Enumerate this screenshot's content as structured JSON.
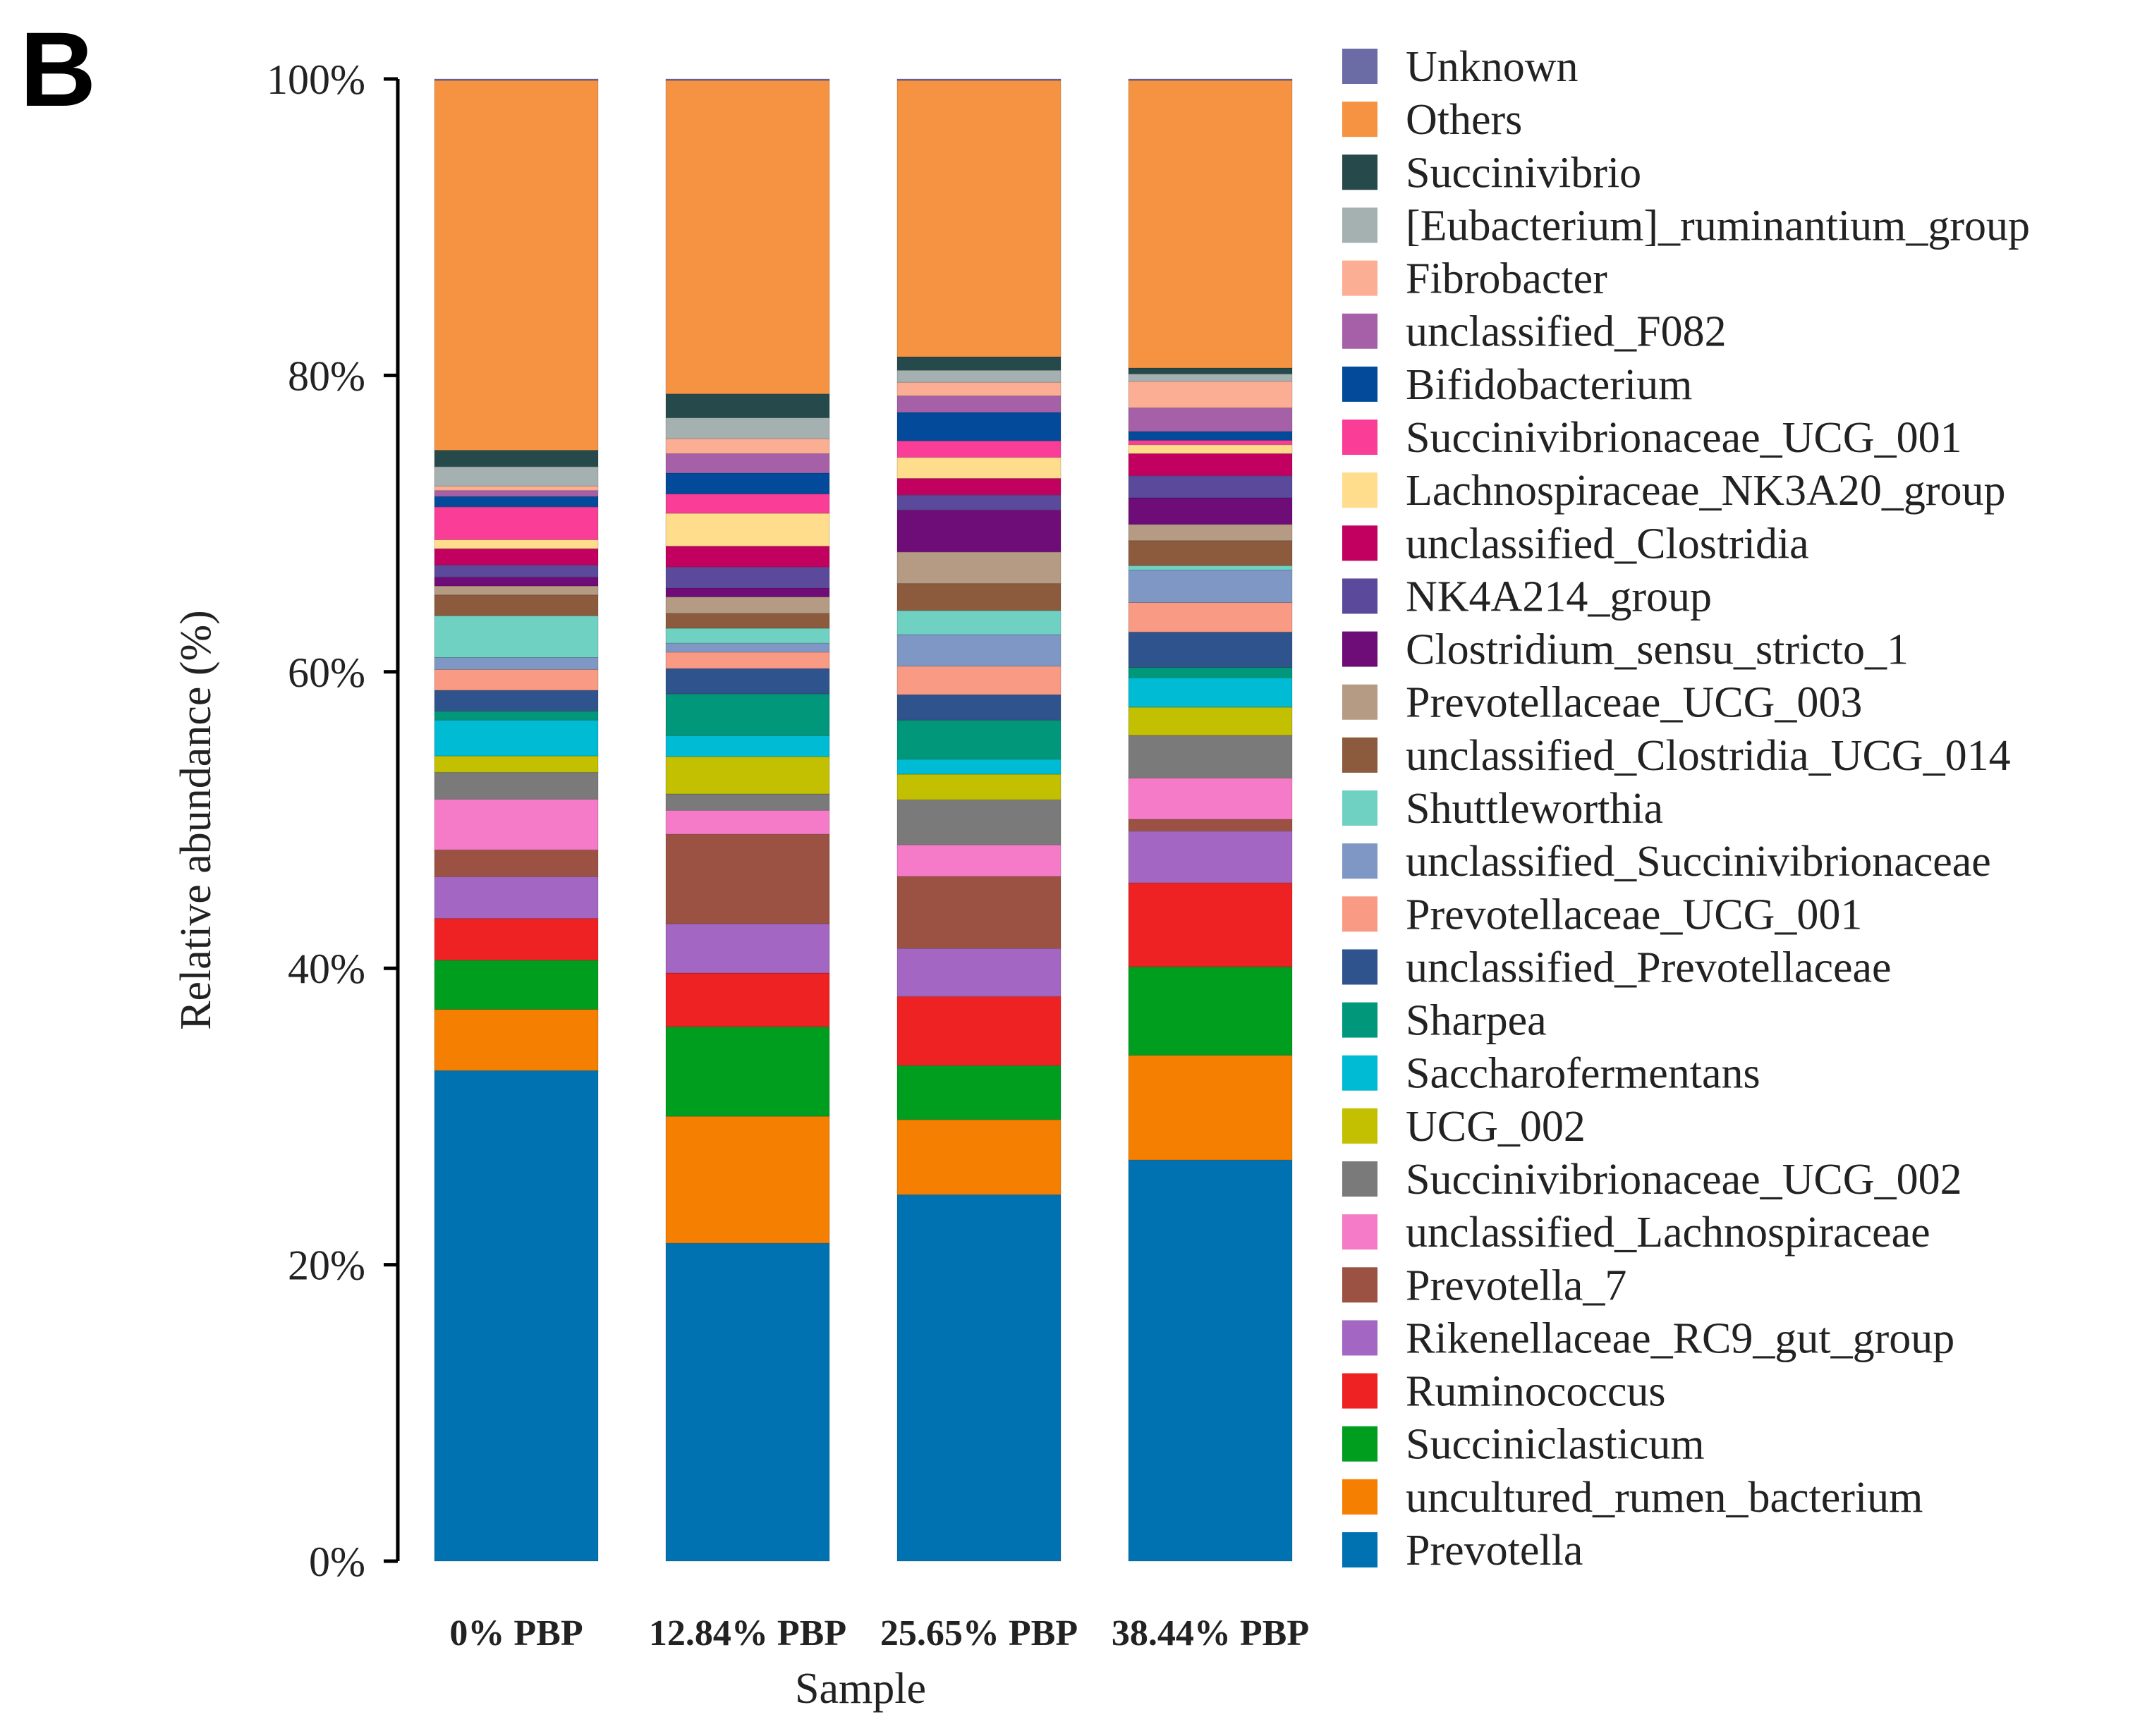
{
  "panel_label": "B",
  "chart_data": {
    "type": "bar",
    "stacked": true,
    "normalized": true,
    "categories": [
      "0% PBP",
      "12.84% PBP",
      "25.65% PBP",
      "38.44% PBP"
    ],
    "xlabel": "Sample",
    "ylabel": "Relative abundance (%)",
    "ylim": [
      0,
      100
    ],
    "yticks": [
      "0%",
      "20%",
      "40%",
      "60%",
      "80%",
      "100%"
    ],
    "ytick_values": [
      0,
      20,
      40,
      60,
      80,
      100
    ],
    "legend_position": "right",
    "series": [
      {
        "name": "Prevotella",
        "color": "#0072B2",
        "values": [
          32.9,
          21.3,
          24.4,
          27.2
        ]
      },
      {
        "name": "uncultured_rumen_bacterium",
        "color": "#F57F00",
        "values": [
          4.1,
          8.5,
          5.0,
          7.1
        ]
      },
      {
        "name": "Succiniclasticum",
        "color": "#009E1F",
        "values": [
          3.3,
          6.0,
          3.6,
          6.0
        ]
      },
      {
        "name": "Ruminococcus",
        "color": "#EE2222",
        "values": [
          2.8,
          3.6,
          4.6,
          5.7
        ]
      },
      {
        "name": "Rikenellaceae_RC9_gut_group",
        "color": "#A366C2",
        "values": [
          2.8,
          3.3,
          3.2,
          3.5
        ]
      },
      {
        "name": "Prevotella_7",
        "color": "#9C5243",
        "values": [
          1.8,
          6.0,
          4.8,
          0.8
        ]
      },
      {
        "name": "unclassified_Lachnospiraceae",
        "color": "#F57BC8",
        "values": [
          3.4,
          1.6,
          2.1,
          2.8
        ]
      },
      {
        "name": "Succinivibrionaceae_UCG_002",
        "color": "#7A7A7A",
        "values": [
          1.8,
          1.1,
          3.0,
          2.9
        ]
      },
      {
        "name": "UCG_002",
        "color": "#C2C000",
        "values": [
          1.1,
          2.5,
          1.7,
          1.9
        ]
      },
      {
        "name": "Saccharofermentans",
        "color": "#00BBD4",
        "values": [
          2.4,
          1.4,
          1.0,
          2.0
        ]
      },
      {
        "name": "Sharpea",
        "color": "#00977B",
        "values": [
          0.6,
          2.8,
          2.6,
          0.7
        ]
      },
      {
        "name": "unclassified_Prevotellaceae",
        "color": "#2F538C",
        "values": [
          1.4,
          1.7,
          1.7,
          2.4
        ]
      },
      {
        "name": "Prevotellaceae_UCG_001",
        "color": "#F89A84",
        "values": [
          1.4,
          1.1,
          1.9,
          2.0
        ]
      },
      {
        "name": "unclassified_Succinivibrionaceae",
        "color": "#7F97C4",
        "values": [
          0.8,
          0.6,
          2.1,
          2.2
        ]
      },
      {
        "name": "Shuttleworthia",
        "color": "#6FD1C2",
        "values": [
          2.8,
          1.0,
          1.6,
          0.3
        ]
      },
      {
        "name": "unclassified_Clostridia_UCG_014",
        "color": "#8C5A3C",
        "values": [
          1.4,
          1.0,
          1.8,
          1.7
        ]
      },
      {
        "name": "Prevotellaceae_UCG_003",
        "color": "#B59A84",
        "values": [
          0.6,
          1.1,
          2.1,
          1.1
        ]
      },
      {
        "name": "Clostridium_sensu_stricto_1",
        "color": "#6E0C78",
        "values": [
          0.6,
          0.6,
          2.8,
          1.8
        ]
      },
      {
        "name": "NK4A214_group",
        "color": "#5B4A9B",
        "values": [
          0.8,
          1.4,
          1.0,
          1.5
        ]
      },
      {
        "name": "unclassified_Clostridia",
        "color": "#C2005F",
        "values": [
          1.1,
          1.4,
          1.1,
          1.5
        ]
      },
      {
        "name": "Lachnospiraceae_NK3A20_group",
        "color": "#FFDD8C",
        "values": [
          0.6,
          2.2,
          1.4,
          0.6
        ]
      },
      {
        "name": "Succinivibrionaceae_UCG_001",
        "color": "#FA3D96",
        "values": [
          2.2,
          1.3,
          1.1,
          0.3
        ]
      },
      {
        "name": "Bifidobacterium",
        "color": "#034A9A",
        "values": [
          0.7,
          1.4,
          1.9,
          0.6
        ]
      },
      {
        "name": "unclassified_F082",
        "color": "#A660A8",
        "values": [
          0.4,
          1.3,
          1.1,
          1.6
        ]
      },
      {
        "name": "Fibrobacter",
        "color": "#FBAE94",
        "values": [
          0.3,
          1.0,
          0.9,
          1.8
        ]
      },
      {
        "name": "[Eubacterium]_ruminantium_group",
        "color": "#A5B1B1",
        "values": [
          1.3,
          1.4,
          0.8,
          0.5
        ]
      },
      {
        "name": "Succinivibrio",
        "color": "#264A4C",
        "values": [
          1.1,
          1.6,
          0.9,
          0.4
        ]
      },
      {
        "name": "Others",
        "color": "#F69342",
        "values": [
          24.8,
          21.0,
          18.4,
          19.5
        ]
      },
      {
        "name": "Unknown",
        "color": "#6B6BA6",
        "values": [
          0.1,
          0.1,
          0.1,
          0.1
        ]
      }
    ]
  }
}
